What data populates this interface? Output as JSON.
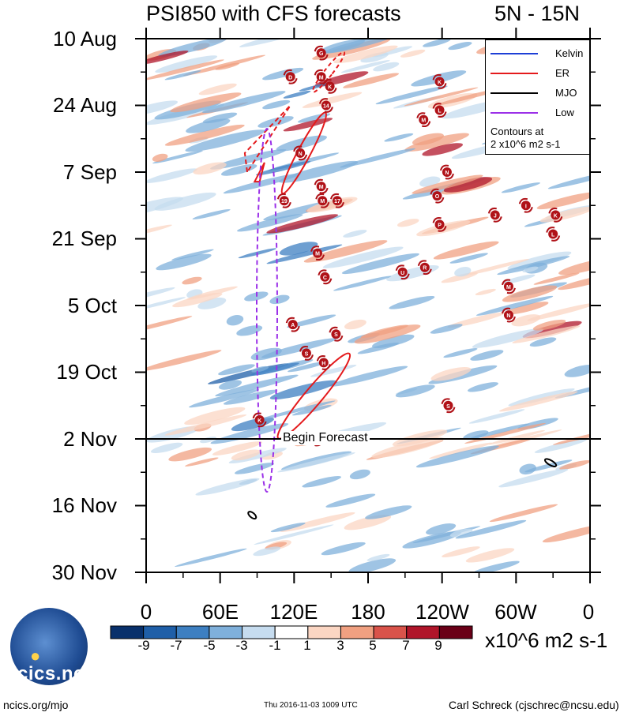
{
  "header": {
    "title": "PSI850 with CFS forecasts",
    "region": "5N - 15N"
  },
  "chart_data": {
    "type": "heatmap",
    "title": "PSI850 with CFS forecasts",
    "subtitle": "5N - 15N",
    "x_tick_labels": [
      "0",
      "60E",
      "120E",
      "180",
      "120W",
      "60W",
      "0"
    ],
    "x_tick_lon": [
      0,
      60,
      120,
      180,
      240,
      300,
      360
    ],
    "xlim": [
      0,
      360
    ],
    "y_tick_labels": [
      "10 Aug",
      "24 Aug",
      "7 Sep",
      "21 Sep",
      "5 Oct",
      "19 Oct",
      "2 Nov",
      "16 Nov",
      "30 Nov"
    ],
    "y_tick_day": [
      0,
      14,
      28,
      42,
      56,
      70,
      84,
      98,
      112
    ],
    "ylim_days_since_10Aug": [
      0,
      112
    ],
    "forecast_start_day": 84,
    "forecast_label": "Begin Forecast",
    "colorbar": {
      "labels": [
        "-9",
        "-7",
        "-5",
        "-3",
        "-1",
        "1",
        "3",
        "5",
        "7",
        "9"
      ],
      "colors": [
        "#08306b",
        "#1f5fa8",
        "#3d7fc1",
        "#7fb0db",
        "#c6dcef",
        "#ffffff",
        "#fbd6c3",
        "#f0a081",
        "#d9534a",
        "#b0152a",
        "#6a0017"
      ],
      "units": "x10^6 m2 s-1"
    },
    "legend": [
      {
        "name": "Kelvin",
        "color": "#1d3fd6"
      },
      {
        "name": "ER",
        "color": "#e41a1c"
      },
      {
        "name": "MJO",
        "color": "#000000"
      },
      {
        "name": "Low",
        "color": "#9b30e8"
      }
    ],
    "legend_note": [
      "Contours at",
      "2 x10^6 m2 s-1"
    ],
    "storm_markers": [
      {
        "label": "G",
        "lon": 142,
        "day": 3
      },
      {
        "label": "D",
        "lon": 117,
        "day": 8
      },
      {
        "label": "M",
        "lon": 142,
        "day": 8
      },
      {
        "label": "K",
        "lon": 149,
        "day": 10
      },
      {
        "label": "K",
        "lon": 238,
        "day": 9
      },
      {
        "label": "14",
        "lon": 146,
        "day": 14
      },
      {
        "label": "L",
        "lon": 238,
        "day": 15
      },
      {
        "label": "M",
        "lon": 225,
        "day": 17
      },
      {
        "label": "N",
        "lon": 125,
        "day": 24
      },
      {
        "label": "N",
        "lon": 244,
        "day": 28
      },
      {
        "label": "M",
        "lon": 142,
        "day": 31
      },
      {
        "label": "19",
        "lon": 112,
        "day": 34
      },
      {
        "label": "M",
        "lon": 143,
        "day": 34
      },
      {
        "label": "17",
        "lon": 155,
        "day": 34
      },
      {
        "label": "O",
        "lon": 236,
        "day": 33
      },
      {
        "label": "J",
        "lon": 283,
        "day": 37
      },
      {
        "label": "I",
        "lon": 308,
        "day": 35
      },
      {
        "label": "K",
        "lon": 332,
        "day": 37
      },
      {
        "label": "P",
        "lon": 238,
        "day": 39
      },
      {
        "label": "L",
        "lon": 330,
        "day": 41
      },
      {
        "label": "M",
        "lon": 139,
        "day": 45
      },
      {
        "label": "U",
        "lon": 208,
        "day": 49
      },
      {
        "label": "R",
        "lon": 226,
        "day": 48
      },
      {
        "label": "C",
        "lon": 145,
        "day": 50
      },
      {
        "label": "M",
        "lon": 294,
        "day": 52
      },
      {
        "label": "N",
        "lon": 294,
        "day": 58
      },
      {
        "label": "A",
        "lon": 119,
        "day": 60
      },
      {
        "label": "S",
        "lon": 154,
        "day": 62
      },
      {
        "label": "S",
        "lon": 130,
        "day": 66
      },
      {
        "label": "H",
        "lon": 144,
        "day": 68
      },
      {
        "label": "S",
        "lon": 245,
        "day": 77
      },
      {
        "label": "K",
        "lon": 92,
        "day": 80
      },
      {
        "label": "26",
        "lon": 138,
        "day": 84
      }
    ]
  },
  "footer": {
    "url": "ncics.org/mjo",
    "timestamp": "Thu 2016-11-03 1009 UTC",
    "author": "Carl Schreck (cjschrec@ncsu.edu)",
    "logo_text": "cics.nc"
  }
}
